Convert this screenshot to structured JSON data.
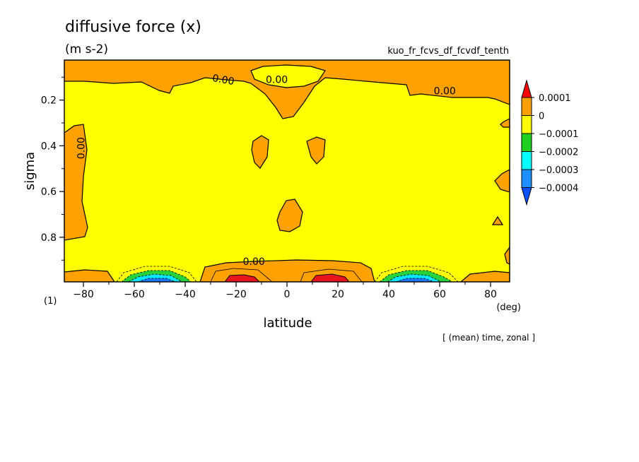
{
  "chart_data": {
    "type": "contour",
    "title": "diffusive force (x)",
    "units": "(m s-2)",
    "variable_id": "kuo_fr_fcvs_df_fcvdf_tenth",
    "xlabel": "latitude",
    "x_unit": "(deg)",
    "ylabel": "sigma",
    "panel_label": "(1)",
    "footer_note": "[ (mean) time, zonal ]",
    "xlim": [
      -87.5,
      87.5
    ],
    "ylim": [
      0.995,
      0.025
    ],
    "x_ticks": [
      -80,
      -60,
      -40,
      -20,
      0,
      20,
      40,
      60,
      80
    ],
    "x_tick_labels": [
      "−80",
      "−60",
      "−40",
      "−20",
      "0",
      "20",
      "40",
      "60",
      "80"
    ],
    "y_ticks": [
      0.2,
      0.4,
      0.6,
      0.8
    ],
    "y_tick_labels": [
      "0.2",
      "0.4",
      "0.6",
      "0.8"
    ],
    "contour_labels": [
      {
        "text": "0.00",
        "lat": -25,
        "sigma": 0.11
      },
      {
        "text": "0.00",
        "lat": -4,
        "sigma": 0.11
      },
      {
        "text": "0.00",
        "lat": 62,
        "sigma": 0.16
      },
      {
        "text": "0.00",
        "lat": -81,
        "sigma": 0.41
      },
      {
        "text": "0.00",
        "lat": -13,
        "sigma": 0.905
      }
    ],
    "legend": {
      "levels": [
        "0.0001",
        "0",
        "−0.0001",
        "−0.0002",
        "−0.0003",
        "−0.0004"
      ],
      "colors": [
        "#ff0000",
        "#ffa000",
        "#ffff00",
        "#20d020",
        "#00ffff",
        "#1e90ff",
        "#0050ff"
      ]
    },
    "colors": {
      "positive_high": "#e8141e",
      "positive": "#ffa200",
      "zero_band": "#ffff00",
      "neg1": "#28d23c",
      "neg2": "#00e6ff",
      "neg3": "#1e78ff"
    }
  }
}
